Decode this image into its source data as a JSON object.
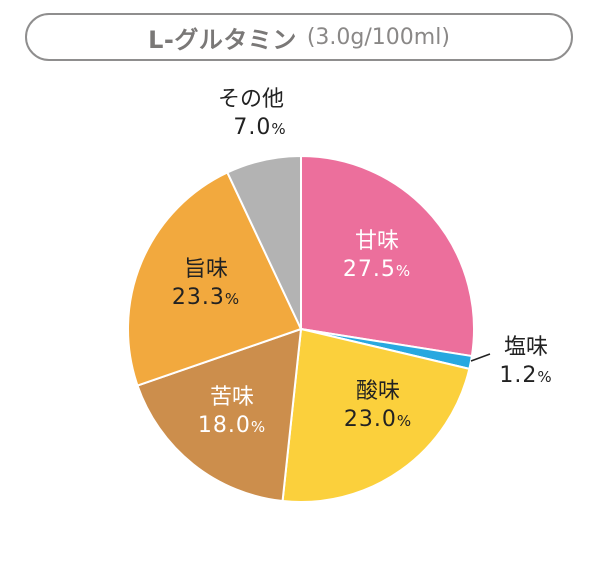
{
  "chart_data": {
    "type": "pie",
    "title": "L-グルタミン",
    "subtitle": "(3.0g/100ml)",
    "slices": [
      {
        "label": "甘味",
        "value": 27.5,
        "display": "27.5",
        "color": "#ec6f9c"
      },
      {
        "label": "塩味",
        "value": 1.2,
        "display": "1.2",
        "color": "#28a8e0"
      },
      {
        "label": "酸味",
        "value": 23.0,
        "display": "23.0",
        "color": "#fbd03c"
      },
      {
        "label": "苦味",
        "value": 18.0,
        "display": "18.0",
        "color": "#cc8e4c"
      },
      {
        "label": "旨味",
        "value": 23.3,
        "display": "23.3",
        "color": "#f2a93e"
      },
      {
        "label": "その他",
        "value": 7.0,
        "display": "7.0",
        "color": "#b3b3b3"
      }
    ],
    "unit": "%"
  }
}
